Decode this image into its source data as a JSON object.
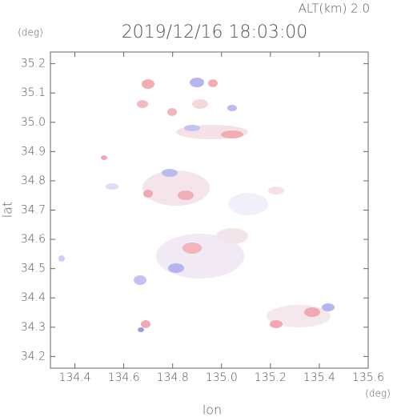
{
  "chart_data": {
    "type": "map",
    "title": "2019/12/16 18:03:00",
    "altitude_label": "ALT(km)  2.0",
    "y_unit": "(deg)",
    "x_unit": "(deg)",
    "xlabel": "lon",
    "ylabel": "lat",
    "xlim": [
      134.3,
      135.6
    ],
    "ylim": [
      34.16,
      35.24
    ],
    "xticks": [
      134.4,
      134.6,
      134.8,
      {
        "value": 135,
        "label": "135.0"
      },
      135.2,
      135.4,
      135.6
    ],
    "yticks": [
      34.2,
      34.3,
      34.4,
      34.5,
      34.6,
      34.7,
      34.8,
      34.9,
      {
        "value": 35,
        "label": "35.0"
      },
      35.1,
      35.2
    ]
  }
}
